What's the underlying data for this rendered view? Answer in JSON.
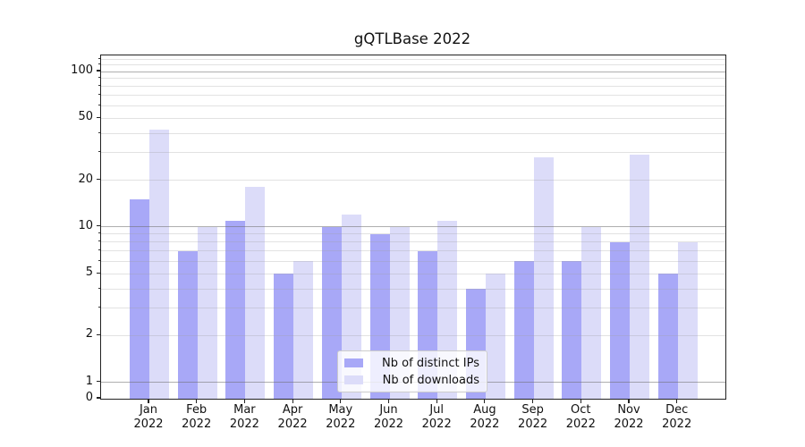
{
  "chart_data": {
    "type": "bar",
    "title": "gQTLBase 2022",
    "categories": [
      "Jan 2022",
      "Feb 2022",
      "Mar 2022",
      "Apr 2022",
      "May 2022",
      "Jun 2022",
      "Jul 2022",
      "Aug 2022",
      "Sep 2022",
      "Oct 2022",
      "Nov 2022",
      "Dec 2022"
    ],
    "x_tick_labels": [
      {
        "line1": "Jan",
        "line2": "2022"
      },
      {
        "line1": "Feb",
        "line2": "2022"
      },
      {
        "line1": "Mar",
        "line2": "2022"
      },
      {
        "line1": "Apr",
        "line2": "2022"
      },
      {
        "line1": "May",
        "line2": "2022"
      },
      {
        "line1": "Jun",
        "line2": "2022"
      },
      {
        "line1": "Jul",
        "line2": "2022"
      },
      {
        "line1": "Aug",
        "line2": "2022"
      },
      {
        "line1": "Sep",
        "line2": "2022"
      },
      {
        "line1": "Oct",
        "line2": "2022"
      },
      {
        "line1": "Nov",
        "line2": "2022"
      },
      {
        "line1": "Dec",
        "line2": "2022"
      }
    ],
    "series": [
      {
        "name": "Nb of distinct IPs",
        "color": "#a8a8f7",
        "values": [
          15,
          7,
          11,
          5,
          10,
          9,
          7,
          4,
          6,
          6,
          8,
          5
        ]
      },
      {
        "name": "Nb of downloads",
        "color": "#dcdcf9",
        "values": [
          42,
          10,
          18,
          6,
          12,
          10,
          11,
          5,
          28,
          10,
          29,
          8
        ]
      }
    ],
    "yscale": "symlog",
    "ylim": [
      0,
      127
    ],
    "y_labeled_ticks": [
      {
        "value": 100,
        "label": "100"
      },
      {
        "value": 50,
        "label": "50"
      },
      {
        "value": 20,
        "label": "20"
      },
      {
        "value": 10,
        "label": "10"
      },
      {
        "value": 5,
        "label": "5"
      },
      {
        "value": 2,
        "label": "2"
      },
      {
        "value": 1,
        "label": "1"
      },
      {
        "value": 0,
        "label": "0"
      }
    ],
    "y_minor_ticks": [
      3,
      4,
      6,
      7,
      8,
      9,
      30,
      40,
      60,
      70,
      80,
      90,
      110,
      120
    ],
    "grid_major_values": [
      1,
      10,
      100
    ],
    "grid_minor_values": [
      2,
      3,
      4,
      5,
      6,
      7,
      8,
      9,
      20,
      30,
      40,
      50,
      60,
      70,
      80,
      90,
      110,
      120
    ],
    "grid": "horizontal",
    "legend_position": "inside-bottom-center"
  },
  "colors": {
    "bar_distinct_ips": "#a8a8f7",
    "bar_downloads": "#dcdcf9",
    "grid_major": "rgba(110,110,110,0.55)",
    "grid_minor": "rgba(160,160,160,0.30)",
    "axis_frame": "#222222",
    "text": "#111111",
    "legend_background": "rgba(255,255,255,0.8)",
    "legend_border": "#cccccc"
  }
}
